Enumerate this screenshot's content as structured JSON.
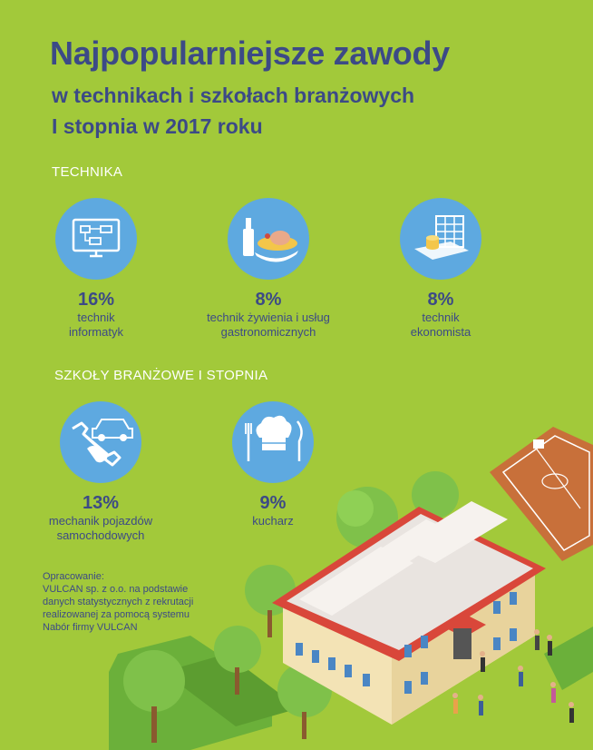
{
  "title": {
    "line1": "Najpopularniejsze zawody",
    "line2": "w technikach i szkołach branżowych",
    "line3": "I stopnia w 2017 roku"
  },
  "sections": {
    "technika": "TECHNIKA",
    "branzowe": "SZKOŁY BRANŻOWE I STOPNIA"
  },
  "technika": [
    {
      "pct": "16%",
      "label": "technik\ninformatyk",
      "icon": "computer-icon"
    },
    {
      "pct": "8%",
      "label": "technik żywienia i usług\ngastronomicznych",
      "icon": "food-icon"
    },
    {
      "pct": "8%",
      "label": "technik\nekonomista",
      "icon": "finance-icon"
    }
  ],
  "branzowe": [
    {
      "pct": "13%",
      "label": "mechanik pojazdów\nsamochodowych",
      "icon": "car-wrench-icon"
    },
    {
      "pct": "9%",
      "label": "kucharz",
      "icon": "chef-icon"
    }
  ],
  "source": {
    "heading": "Opracowanie:",
    "lines": [
      "VULCAN sp. z o.o. na podstawie",
      "danych statystycznych z rekrutacji",
      "realizowanej za pomocą systemu",
      "Nabór firmy VULCAN"
    ]
  },
  "colors": {
    "background": "#a2c93a",
    "title": "#3c4a86",
    "icon_circle": "#5ea9e0"
  }
}
